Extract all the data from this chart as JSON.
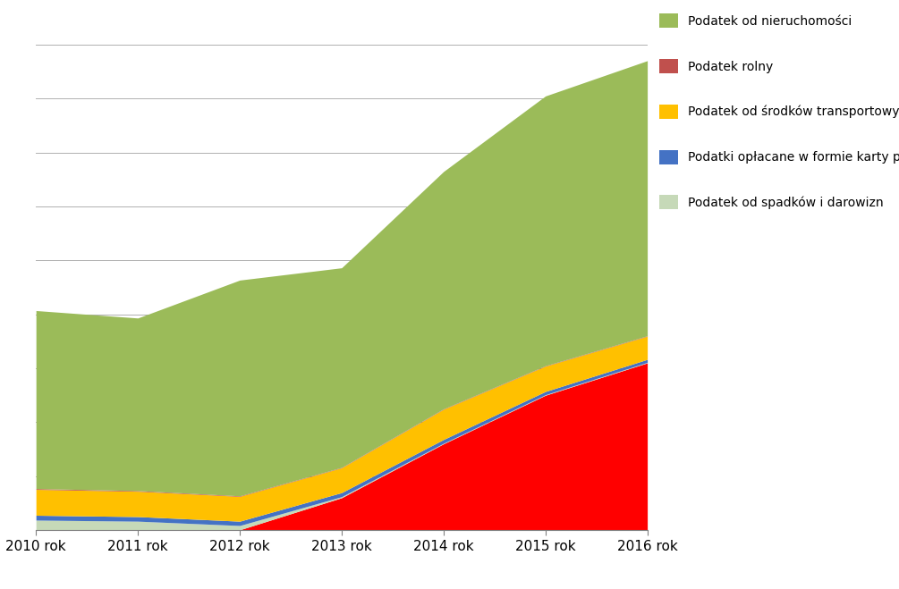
{
  "years": [
    2010,
    2011,
    2012,
    2013,
    2014,
    2015,
    2016
  ],
  "pit_red": [
    5,
    5,
    5,
    600,
    1600,
    2500,
    3100
  ],
  "spadki_lightgreen": [
    180,
    160,
    80,
    20,
    10,
    10,
    10
  ],
  "karta_blue": [
    90,
    85,
    80,
    75,
    70,
    60,
    55
  ],
  "srodki_yellow": [
    480,
    470,
    460,
    460,
    560,
    470,
    430
  ],
  "rolny_brown": [
    15,
    12,
    10,
    8,
    8,
    8,
    8
  ],
  "nieruchomosci_green": [
    3300,
    3200,
    4000,
    3700,
    4400,
    5000,
    5100
  ],
  "ylim": [
    0,
    9500
  ],
  "background_color": "#ffffff",
  "grid_color": "#b0b0b0",
  "colors": {
    "pit": "#ff0000",
    "spadki": "#c6d9b8",
    "karta": "#4472c4",
    "srodki": "#ffc000",
    "rolny": "#c0504d",
    "nieruchomosci": "#9bbb59"
  },
  "legend_labels": [
    "Podatek od nieruchomości",
    "Podatek rolny",
    "Podatek od środków transportowych",
    "Podatki opłacane w formie karty podatkowej",
    "Podatek od spadków i darowizn"
  ],
  "legend_colors": [
    "#9bbb59",
    "#c0504d",
    "#ffc000",
    "#4472c4",
    "#c6d9b8"
  ],
  "yticks": [
    1000,
    2000,
    3000,
    4000,
    5000,
    6000,
    7000,
    8000,
    9000
  ]
}
